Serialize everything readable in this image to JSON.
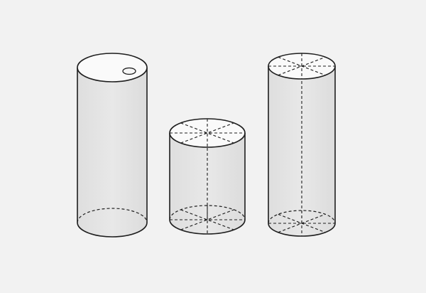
{
  "colors": {
    "background": "#f2f2f2",
    "body_fill": "#e2e2e2",
    "top_fill": "#fafafa",
    "outline": "#1e1e1e"
  },
  "figures": [
    {
      "id": "tall-cylinder-with-hole",
      "top_marking": "hole",
      "base_marking": "dashed-back-rim"
    },
    {
      "id": "short-cylinder-with-spokes",
      "top_marking": "radial-spokes",
      "base_marking": "radial-spokes"
    },
    {
      "id": "tall-cylinder-with-spokes-and-axis",
      "top_marking": "radial-spokes",
      "base_marking": "radial-spokes",
      "axis": "dashed"
    }
  ]
}
